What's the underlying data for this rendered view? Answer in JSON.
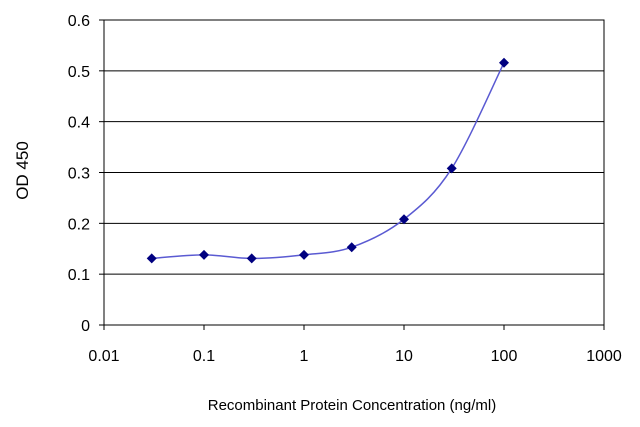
{
  "chart_data": {
    "type": "line",
    "xlabel": "Recombinant Protein Concentration (ng/ml)",
    "ylabel": "OD 450",
    "x_scale": "log",
    "xlim": [
      0.01,
      1000
    ],
    "ylim": [
      0,
      0.6
    ],
    "x_ticks": [
      0.01,
      0.1,
      1,
      10,
      100,
      1000
    ],
    "x_tick_labels": [
      "0.01",
      "0.1",
      "1",
      "10",
      "100",
      "1000"
    ],
    "y_ticks": [
      0,
      0.1,
      0.2,
      0.3,
      0.4,
      0.5,
      0.6
    ],
    "y_tick_labels": [
      "0",
      "0.1",
      "0.2",
      "0.3",
      "0.4",
      "0.5",
      "0.6"
    ],
    "grid": "horizontal",
    "line_color": "#5a5ad2",
    "marker_color": "#000080",
    "marker": "diamond",
    "series": [
      {
        "x": [
          0.03,
          0.1,
          0.3,
          1,
          3,
          10,
          30,
          100
        ],
        "y": [
          0.131,
          0.138,
          0.131,
          0.138,
          0.153,
          0.208,
          0.308,
          0.516
        ]
      }
    ]
  }
}
